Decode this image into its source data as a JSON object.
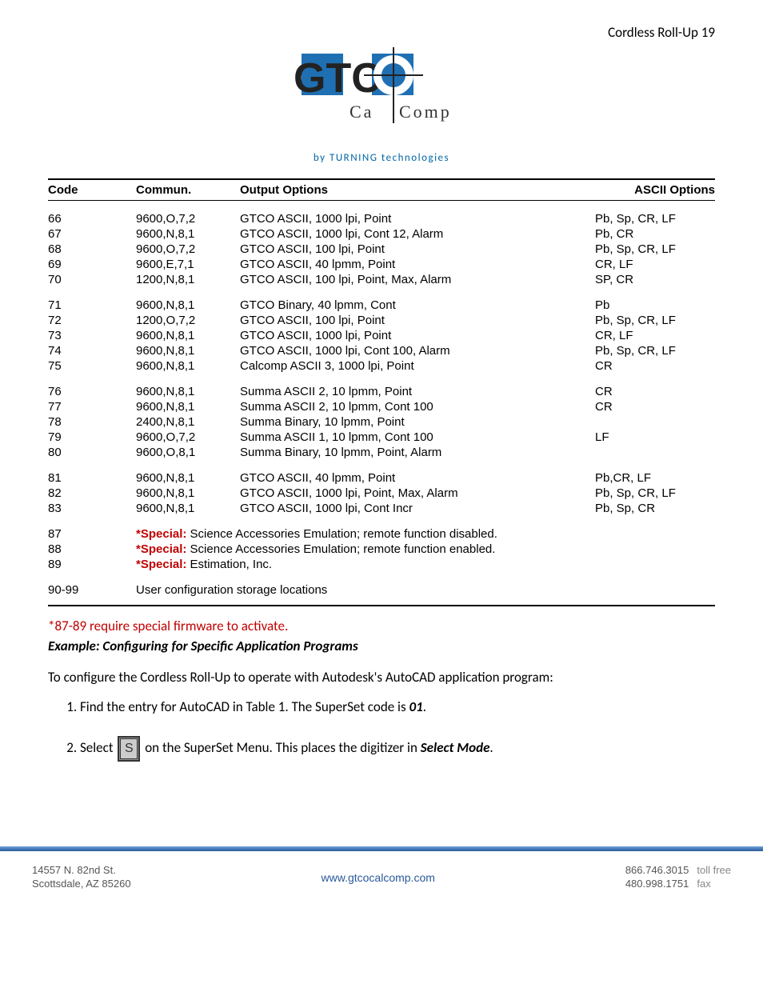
{
  "header": {
    "page_label": "Cordless Roll-Up 19"
  },
  "logo": {
    "text_gtco": "GTCO",
    "text_calcomp": "C a l C o m p",
    "tagline": "by  TURNING  technologies",
    "blue": "#1f6fb3",
    "dark": "#222222"
  },
  "table": {
    "headers": {
      "code": "Code",
      "commun": "Commun.",
      "output": "Output Options",
      "ascii": "ASCII Options"
    },
    "groups": [
      [
        {
          "code": "66",
          "commun": "9600,O,7,2",
          "output": "GTCO ASCII, 1000 lpi, Point",
          "ascii": "Pb, Sp, CR, LF"
        },
        {
          "code": "67",
          "commun": "9600,N,8,1",
          "output": "GTCO ASCII, 1000 lpi, Cont 12, Alarm",
          "ascii": "Pb, CR"
        },
        {
          "code": "68",
          "commun": "9600,O,7,2",
          "output": "GTCO ASCII, 100 lpi, Point",
          "ascii": "Pb, Sp, CR, LF"
        },
        {
          "code": "69",
          "commun": "9600,E,7,1",
          "output": "GTCO ASCII, 40 lpmm, Point",
          "ascii": "CR, LF"
        },
        {
          "code": "70",
          "commun": "1200,N,8,1",
          "output": "GTCO ASCII, 100 lpi, Point, Max, Alarm",
          "ascii": "SP, CR"
        }
      ],
      [
        {
          "code": "71",
          "commun": "9600,N,8,1",
          "output": "GTCO Binary, 40 lpmm, Cont",
          "ascii": "Pb"
        },
        {
          "code": "72",
          "commun": "1200,O,7,2",
          "output": "GTCO ASCII, 100 lpi, Point",
          "ascii": "Pb, Sp, CR, LF"
        },
        {
          "code": "73",
          "commun": "9600,N,8,1",
          "output": "GTCO ASCII, 1000 lpi, Point",
          "ascii": "CR, LF"
        },
        {
          "code": "74",
          "commun": "9600,N,8,1",
          "output": "GTCO ASCII, 1000 lpi, Cont 100, Alarm",
          "ascii": "Pb, Sp, CR, LF"
        },
        {
          "code": "75",
          "commun": "9600,N,8,1",
          "output": "Calcomp ASCII 3, 1000 lpi, Point",
          "ascii": "CR"
        }
      ],
      [
        {
          "code": "76",
          "commun": "9600,N,8,1",
          "output": "Summa ASCII 2, 10 lpmm, Point",
          "ascii": "CR"
        },
        {
          "code": "77",
          "commun": "9600,N,8,1",
          "output": "Summa ASCII 2, 10 lpmm, Cont 100",
          "ascii": "CR"
        },
        {
          "code": "78",
          "commun": "2400,N,8,1",
          "output": "Summa Binary, 10 lpmm, Point",
          "ascii": ""
        },
        {
          "code": "79",
          "commun": "9600,O,7,2",
          "output": "Summa ASCII 1, 10 lpmm, Cont 100",
          "ascii": "LF"
        },
        {
          "code": "80",
          "commun": "9600,O,8,1",
          "output": "Summa Binary, 10 lpmm, Point, Alarm",
          "ascii": ""
        }
      ],
      [
        {
          "code": "81",
          "commun": "9600,N,8,1",
          "output": "GTCO ASCII, 40 lpmm, Point",
          "ascii": "Pb,CR, LF"
        },
        {
          "code": "82",
          "commun": "9600,N,8,1",
          "output": "GTCO ASCII, 1000 lpi, Point, Max, Alarm",
          "ascii": "Pb, Sp, CR, LF"
        },
        {
          "code": "83",
          "commun": "9600,N,8,1",
          "output": "GTCO ASCII, 1000 lpi, Cont Incr",
          "ascii": "Pb, Sp, CR"
        }
      ]
    ],
    "specials": [
      {
        "code": "87",
        "label": "*Special:",
        "text": "Science Accessories Emulation; remote function disabled."
      },
      {
        "code": "88",
        "label": "*Special:",
        "text": "Science Accessories Emulation; remote function enabled."
      },
      {
        "code": "89",
        "label": "*Special:",
        "text": "Estimation, Inc."
      }
    ],
    "user_row": {
      "code": "90-99",
      "text": "User configuration storage locations"
    }
  },
  "notes": {
    "red_note": "*87-89 require special firmware to activate.",
    "example_heading": "Example: Configuring for Specific Application Programs",
    "intro": "To configure the Cordless Roll-Up to operate with Autodesk's AutoCAD application program:",
    "step1_a": "Find the entry for AutoCAD in Table 1.  The SuperSet code is ",
    "step1_b": "01",
    "step1_c": ".",
    "step2_a": "Select ",
    "step2_b": " on the SuperSet Menu.  This places the digitizer in ",
    "step2_c": "Select Mode",
    "step2_d": ".",
    "s_icon_letter": "S"
  },
  "footer": {
    "addr1": "14557 N. 82nd St.",
    "addr2": "Scottsdale, AZ 85260",
    "site": "www.gtcocalcomp.com",
    "phone1": "866.746.3015",
    "phone1_lbl": "toll free",
    "phone2": "480.998.1751",
    "phone2_lbl": "fax"
  }
}
